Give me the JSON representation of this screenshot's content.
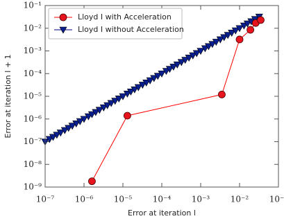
{
  "chart_data": {
    "type": "line",
    "xscale": "log",
    "yscale": "log",
    "xlabel": "Error at iteration l",
    "ylabel": "Error at iteration l + 1",
    "xlim": [
      1e-07,
      0.1
    ],
    "ylim": [
      1e-09,
      0.1
    ],
    "xticks": [
      {
        "value": 1e-07,
        "label": "10⁻⁷"
      },
      {
        "value": 1e-06,
        "label": "10⁻⁶"
      },
      {
        "value": 1e-05,
        "label": "10⁻⁵"
      },
      {
        "value": 0.0001,
        "label": "10⁻⁴"
      },
      {
        "value": 0.001,
        "label": "10⁻³"
      },
      {
        "value": 0.01,
        "label": "10⁻²"
      },
      {
        "value": 0.1,
        "label": "10⁻¹"
      }
    ],
    "yticks": [
      {
        "value": 1e-09,
        "label": "10⁻⁹"
      },
      {
        "value": 1e-08,
        "label": "10⁻⁸"
      },
      {
        "value": 1e-07,
        "label": "10⁻⁷"
      },
      {
        "value": 1e-06,
        "label": "10⁻⁶"
      },
      {
        "value": 1e-05,
        "label": "10⁻⁵"
      },
      {
        "value": 0.0001,
        "label": "10⁻⁴"
      },
      {
        "value": 0.001,
        "label": "10⁻³"
      },
      {
        "value": 0.01,
        "label": "10⁻²"
      },
      {
        "value": 0.1,
        "label": "10⁻¹"
      }
    ],
    "legend": "upper left",
    "series": [
      {
        "name": "Lloyd I with Acceleration",
        "color": "#ff0000",
        "marker": "circle",
        "x": [
          1.6e-06,
          1.3e-05,
          0.0035,
          0.01,
          0.019,
          0.026,
          0.035
        ],
        "values": [
          1.8e-09,
          1.4e-06,
          1.2e-05,
          0.0032,
          0.0085,
          0.017,
          0.023
        ]
      },
      {
        "name": "Lloyd I without Acceleration",
        "color": "#000080",
        "marker": "triangle-down",
        "x": [
          1e-07,
          1.3e-07,
          1.6e-07,
          2e-07,
          2.5e-07,
          3.2e-07,
          4e-07,
          5e-07,
          6.3e-07,
          7.9e-07,
          1e-06,
          1.3e-06,
          1.6e-06,
          2e-06,
          2.5e-06,
          3.2e-06,
          4e-06,
          5e-06,
          6.3e-06,
          7.9e-06,
          1e-05,
          1.3e-05,
          1.6e-05,
          2e-05,
          2.5e-05,
          3.2e-05,
          4e-05,
          5e-05,
          6.3e-05,
          7.9e-05,
          0.0001,
          0.00013,
          0.00016,
          0.0002,
          0.00025,
          0.00032,
          0.0004,
          0.0005,
          0.00063,
          0.00079,
          0.001,
          0.0013,
          0.0016,
          0.002,
          0.0025,
          0.0032,
          0.004,
          0.005,
          0.0063,
          0.0079,
          0.01,
          0.013,
          0.016,
          0.02,
          0.025,
          0.032
        ],
        "values": [
          1e-07,
          1.3e-07,
          1.6e-07,
          2e-07,
          2.5e-07,
          3.2e-07,
          4e-07,
          5e-07,
          6.3e-07,
          7.9e-07,
          1e-06,
          1.3e-06,
          1.6e-06,
          2e-06,
          2.5e-06,
          3.2e-06,
          4e-06,
          5e-06,
          6.3e-06,
          7.9e-06,
          1e-05,
          1.3e-05,
          1.6e-05,
          2e-05,
          2.5e-05,
          3.2e-05,
          4e-05,
          5e-05,
          6.3e-05,
          7.9e-05,
          0.0001,
          0.00013,
          0.00016,
          0.0002,
          0.00025,
          0.00032,
          0.0004,
          0.0005,
          0.00063,
          0.00079,
          0.001,
          0.0013,
          0.0016,
          0.002,
          0.0025,
          0.0032,
          0.004,
          0.005,
          0.0063,
          0.0079,
          0.01,
          0.013,
          0.016,
          0.02,
          0.025,
          0.032
        ]
      }
    ]
  }
}
